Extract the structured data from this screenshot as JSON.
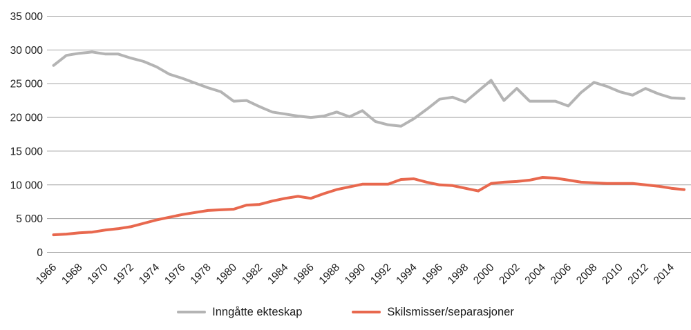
{
  "chart_data": {
    "type": "line",
    "title": "",
    "x": [
      1966,
      1967,
      1968,
      1969,
      1970,
      1971,
      1972,
      1973,
      1974,
      1975,
      1976,
      1977,
      1978,
      1979,
      1980,
      1981,
      1982,
      1983,
      1984,
      1985,
      1986,
      1987,
      1988,
      1989,
      1990,
      1991,
      1992,
      1993,
      1994,
      1995,
      1996,
      1997,
      1998,
      1999,
      2000,
      2001,
      2002,
      2003,
      2004,
      2005,
      2006,
      2007,
      2008,
      2009,
      2010,
      2011,
      2012,
      2013,
      2014,
      2015
    ],
    "series": [
      {
        "name": "Inngåtte ekteskap",
        "color": "#b4b4b4",
        "values": [
          27700,
          29200,
          29500,
          29700,
          29400,
          29400,
          28800,
          28300,
          27500,
          26400,
          25800,
          25100,
          24400,
          23800,
          22400,
          22500,
          21600,
          20800,
          20500,
          20200,
          20000,
          20200,
          20800,
          20100,
          21000,
          19400,
          18900,
          18700,
          19800,
          21200,
          22700,
          23000,
          22300,
          23900,
          25500,
          22500,
          24300,
          22400,
          22400,
          22400,
          21700,
          23700,
          25200,
          24600,
          23800,
          23300,
          24300,
          23500,
          22900,
          22800
        ]
      },
      {
        "name": "Skilsmisser/separasjoner",
        "color": "#e8684e",
        "values": [
          2600,
          2700,
          2900,
          3000,
          3300,
          3500,
          3800,
          4300,
          4800,
          5200,
          5600,
          5900,
          6200,
          6300,
          6400,
          7000,
          7100,
          7600,
          8000,
          8300,
          8000,
          8700,
          9300,
          9700,
          10100,
          10100,
          10100,
          10800,
          10900,
          10400,
          10000,
          9900,
          9500,
          9100,
          10200,
          10400,
          10500,
          10700,
          11100,
          11000,
          10700,
          10400,
          10300,
          10200,
          10200,
          10200,
          10000,
          9800,
          9500,
          9300
        ]
      }
    ],
    "xlabel": "",
    "ylabel": "",
    "ylim": [
      0,
      35000
    ],
    "ytick_step": 5000,
    "ytick_labels": [
      "0",
      "5 000",
      "10 000",
      "15 000",
      "20 000",
      "25 000",
      "30 000",
      "35 000"
    ],
    "xtick_labels": [
      "1966",
      "1968",
      "1970",
      "1972",
      "1974",
      "1976",
      "1978",
      "1980",
      "1982",
      "1984",
      "1986",
      "1988",
      "1990",
      "1992",
      "1994",
      "1996",
      "1998",
      "2000",
      "2002",
      "2004",
      "2006",
      "2008",
      "2010",
      "2012",
      "2014"
    ],
    "grid": "horizontal",
    "gridline_color": "#a3a3a3",
    "text_color": "#1a1a1a",
    "background": "#ffffff",
    "legend_position": "bottom-center"
  }
}
